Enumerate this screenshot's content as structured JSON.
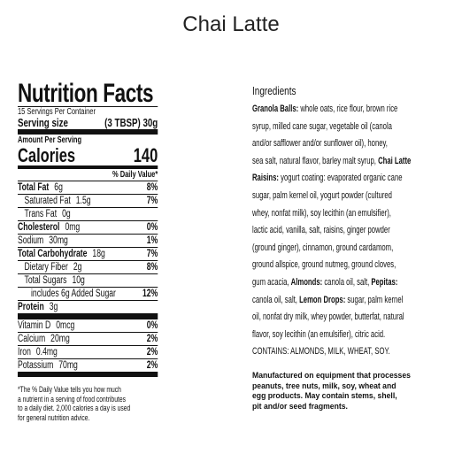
{
  "title": "Chai Latte",
  "nutrition": {
    "heading": "Nutrition Facts",
    "servings": "15 Servings Per Container",
    "serving_size_label": "Serving size",
    "serving_size": "(3 TBSP) 30g",
    "amount_per_serving": "Amount Per Serving",
    "calories_label": "Calories",
    "calories": "140",
    "daily_value_header": "% Daily Value*",
    "rows": [
      {
        "label": "Total Fat",
        "amount": "6g",
        "dv": "8%",
        "bold": true
      },
      {
        "label": "Saturated Fat",
        "amount": "1.5g",
        "dv": "7%",
        "indent": 1
      },
      {
        "label": "Trans Fat",
        "amount": "0g",
        "indent": 1
      },
      {
        "label": "Cholesterol",
        "amount": "0mg",
        "dv": "0%",
        "bold": true
      },
      {
        "label": "Sodium",
        "amount": "30mg",
        "dv": "1%"
      },
      {
        "label": "Total Carbohydrate",
        "amount": "18g",
        "dv": "7%",
        "bold": true
      },
      {
        "label": "Dietary Fiber",
        "amount": "2g",
        "dv": "8%",
        "indent": 1
      },
      {
        "label": "Total Sugars",
        "amount": "10g",
        "indent": 1
      },
      {
        "label": "includes 6g Added Sugar",
        "dv": "12%",
        "indent": 2
      },
      {
        "label": "Protein",
        "amount": "3g",
        "bold": true
      }
    ],
    "micros": [
      {
        "label": "Vitamin D",
        "amount": "0mcg",
        "dv": "0%"
      },
      {
        "label": "Calcium",
        "amount": "20mg",
        "dv": "2%"
      },
      {
        "label": "Iron",
        "amount": "0.4mg",
        "dv": "2%"
      },
      {
        "label": "Potassium",
        "amount": "70mg",
        "dv": "2%"
      }
    ],
    "footnote": [
      "*The % Daily Value tells you how much",
      "a nutrient in a serving of food contributes",
      "to a daily diet. 2,000 calories a day is used",
      "for general nutrition advice."
    ]
  },
  "ingredients": {
    "title": "Ingredients",
    "lines": [
      [
        {
          "text": "Granola Balls:",
          "bold": true
        },
        {
          "text": " whole oats, rice flour, brown rice"
        }
      ],
      [
        {
          "text": "syrup, milled cane sugar, vegetable oil (canola"
        }
      ],
      [
        {
          "text": "and/or safflower and/or sunflower oil), honey,"
        }
      ],
      [
        {
          "text": "sea salt, natural flavor, barley malt syrup, "
        },
        {
          "text": "Chai Latte",
          "bold": true
        }
      ],
      [
        {
          "text": "Raisins:",
          "bold": true
        },
        {
          "text": " yogurt coating: evaporated organic cane"
        }
      ],
      [
        {
          "text": "sugar, palm kernel oil, yogurt powder (cultured"
        }
      ],
      [
        {
          "text": "whey, nonfat milk), soy lecithin (an emulsifier),"
        }
      ],
      [
        {
          "text": "lactic acid, vanilla, salt, raisins, ginger powder"
        }
      ],
      [
        {
          "text": "(ground ginger), cinnamon, ground cardamom,"
        }
      ],
      [
        {
          "text": "ground allspice, ground nutmeg, ground cloves,"
        }
      ],
      [
        {
          "text": "gum acacia, "
        },
        {
          "text": "Almonds:",
          "bold": true
        },
        {
          "text": " canola oil, salt, "
        },
        {
          "text": "Pepitas:",
          "bold": true
        }
      ],
      [
        {
          "text": "canola oil, salt, "
        },
        {
          "text": "Lemon Drops:",
          "bold": true
        },
        {
          "text": " sugar, palm kernel"
        }
      ],
      [
        {
          "text": "oil, nonfat dry milk, whey powder, butterfat, natural"
        }
      ],
      [
        {
          "text": "flavor, soy lecithin (an emulsifier), citric acid."
        }
      ],
      [
        {
          "text": "CONTAINS: ALMONDS, MILK, WHEAT, SOY."
        }
      ]
    ],
    "manufacturing": [
      "Manufactured on equipment that processes",
      "peanuts, tree nuts, milk, soy, wheat and",
      "egg products. May contain stems, shell,",
      "pit and/or seed fragments."
    ]
  }
}
